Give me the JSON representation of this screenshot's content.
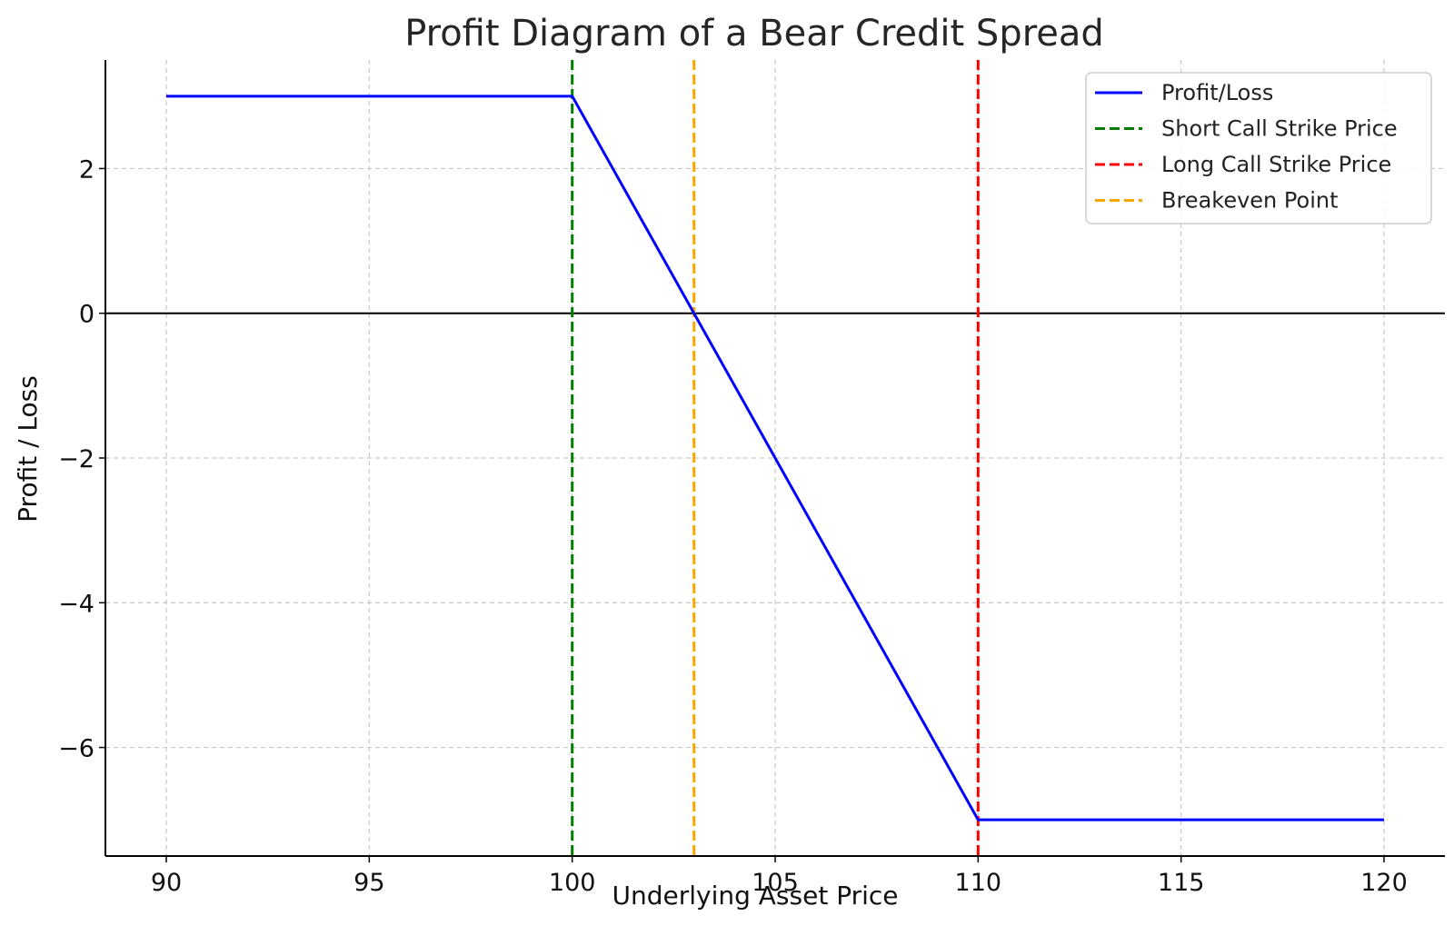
{
  "chart_data": {
    "type": "line",
    "title": "Profit Diagram of a Bear Credit Spread",
    "xlabel": "Underlying Asset Price",
    "ylabel": "Profit / Loss",
    "xlim": [
      88.5,
      121.5
    ],
    "ylim": [
      -7.5,
      3.5
    ],
    "xticks": [
      90,
      95,
      100,
      105,
      110,
      115,
      120
    ],
    "yticks": [
      -6,
      -4,
      -2,
      0,
      2
    ],
    "xtick_labels": [
      "90",
      "95",
      "100",
      "105",
      "110",
      "115",
      "120"
    ],
    "ytick_labels": [
      "−6",
      "−4",
      "−2",
      "0",
      "2"
    ],
    "grid": true,
    "legend_position": "top-right",
    "zero_line": true,
    "series": [
      {
        "name": "Profit/Loss",
        "color": "#0000ff",
        "style": "solid",
        "x": [
          90,
          100,
          110,
          120
        ],
        "y": [
          3,
          3,
          -7,
          -7
        ]
      }
    ],
    "vlines": [
      {
        "name": "Short Call Strike Price",
        "x": 100,
        "color": "#007f00",
        "style": "dashed"
      },
      {
        "name": "Long Call Strike Price",
        "x": 110,
        "color": "#ff0000",
        "style": "dashed"
      },
      {
        "name": "Breakeven Point",
        "x": 103,
        "color": "#ffa500",
        "style": "dashed"
      }
    ],
    "legend": [
      {
        "label": "Profit/Loss",
        "color": "#0000ff",
        "style": "solid"
      },
      {
        "label": "Short Call Strike Price",
        "color": "#007f00",
        "style": "dashed"
      },
      {
        "label": "Long Call Strike Price",
        "color": "#ff0000",
        "style": "dashed"
      },
      {
        "label": "Breakeven Point",
        "color": "#ffa500",
        "style": "dashed"
      }
    ]
  }
}
